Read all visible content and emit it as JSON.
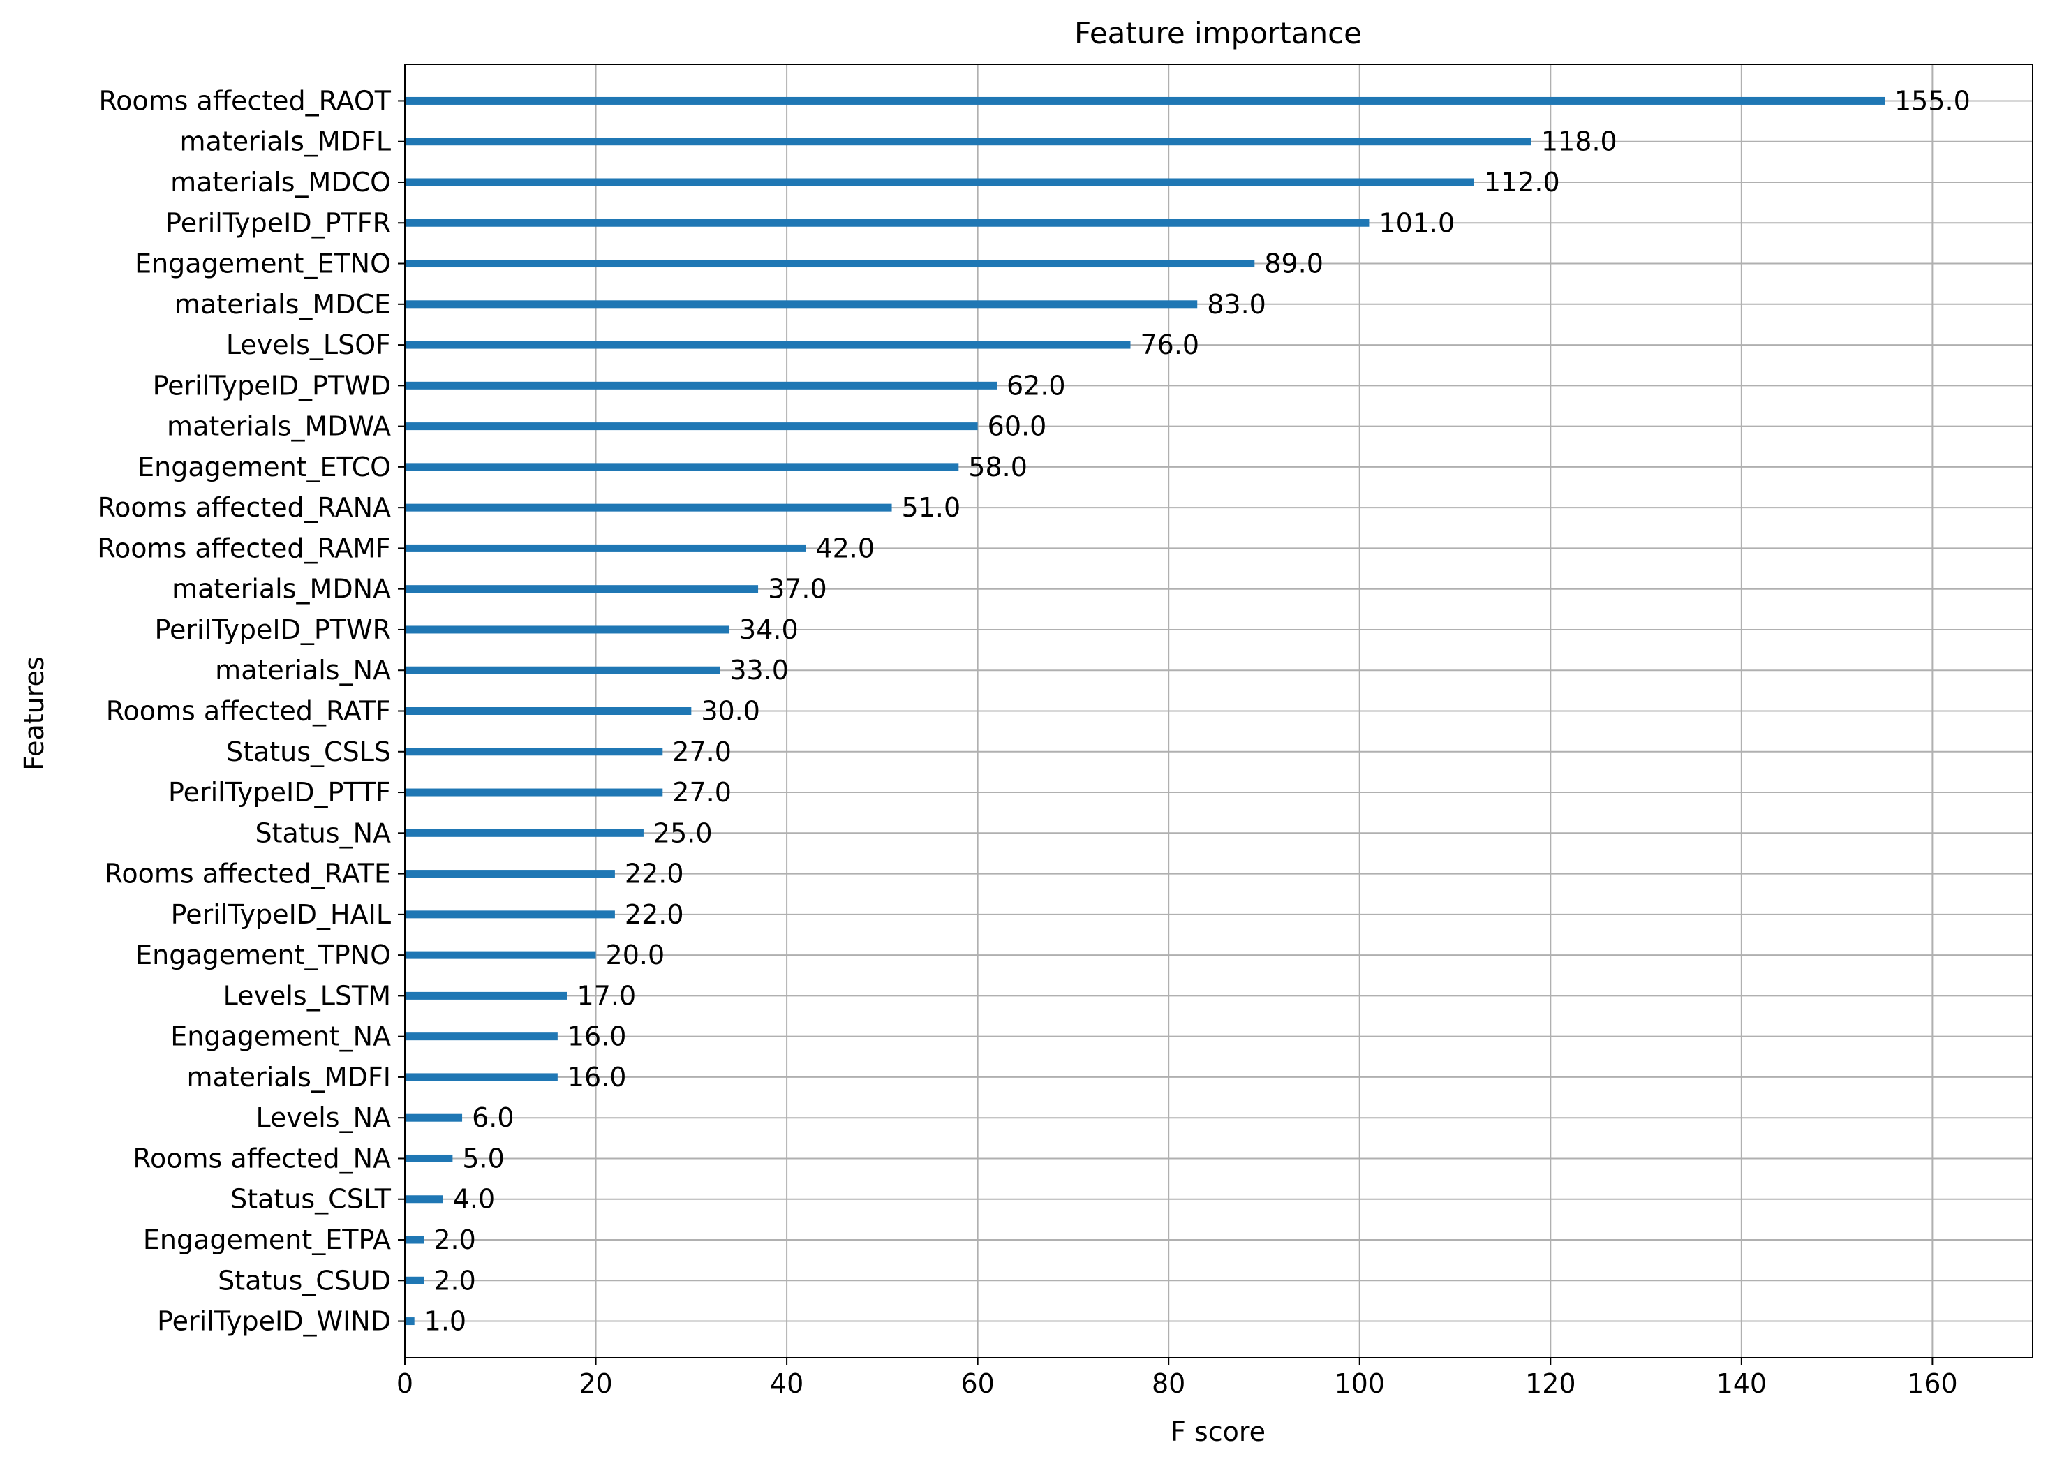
{
  "chart_data": {
    "type": "bar",
    "orientation": "horizontal",
    "title": "Feature importance",
    "xlabel": "F score",
    "ylabel": "Features",
    "xlim": [
      0,
      170.5
    ],
    "xticks": [
      0,
      20,
      40,
      60,
      80,
      100,
      120,
      140,
      160
    ],
    "grid": true,
    "bar_color": "#1f77b4",
    "categories": [
      "Rooms affected_RAOT",
      "materials_MDFL",
      "materials_MDCO",
      "PerilTypeID_PTFR",
      "Engagement_ETNO",
      "materials_MDCE",
      "Levels_LSOF",
      "PerilTypeID_PTWD",
      "materials_MDWA",
      "Engagement_ETCO",
      "Rooms affected_RANA",
      "Rooms affected_RAMF",
      "materials_MDNA",
      "PerilTypeID_PTWR",
      "materials_NA",
      "Rooms affected_RATF",
      "Status_CSLS",
      "PerilTypeID_PTTF",
      "Status_NA",
      "Rooms affected_RATE",
      "PerilTypeID_HAIL",
      "Engagement_TPNO",
      "Levels_LSTM",
      "Engagement_NA",
      "materials_MDFI",
      "Levels_NA",
      "Rooms affected_NA",
      "Status_CSLT",
      "Engagement_ETPA",
      "Status_CSUD",
      "PerilTypeID_WIND"
    ],
    "values": [
      155,
      118,
      112,
      101,
      89,
      83,
      76,
      62,
      60,
      58,
      51,
      42,
      37,
      34,
      33,
      30,
      27,
      27,
      25,
      22,
      22,
      20,
      17,
      16,
      16,
      6,
      5,
      4,
      2,
      2,
      1
    ],
    "data_labels": [
      "155.0",
      "118.0",
      "112.0",
      "101.0",
      "89.0",
      "83.0",
      "76.0",
      "62.0",
      "60.0",
      "58.0",
      "51.0",
      "42.0",
      "37.0",
      "34.0",
      "33.0",
      "30.0",
      "27.0",
      "27.0",
      "25.0",
      "22.0",
      "22.0",
      "20.0",
      "17.0",
      "16.0",
      "16.0",
      "6.0",
      "5.0",
      "4.0",
      "2.0",
      "2.0",
      "1.0"
    ]
  }
}
